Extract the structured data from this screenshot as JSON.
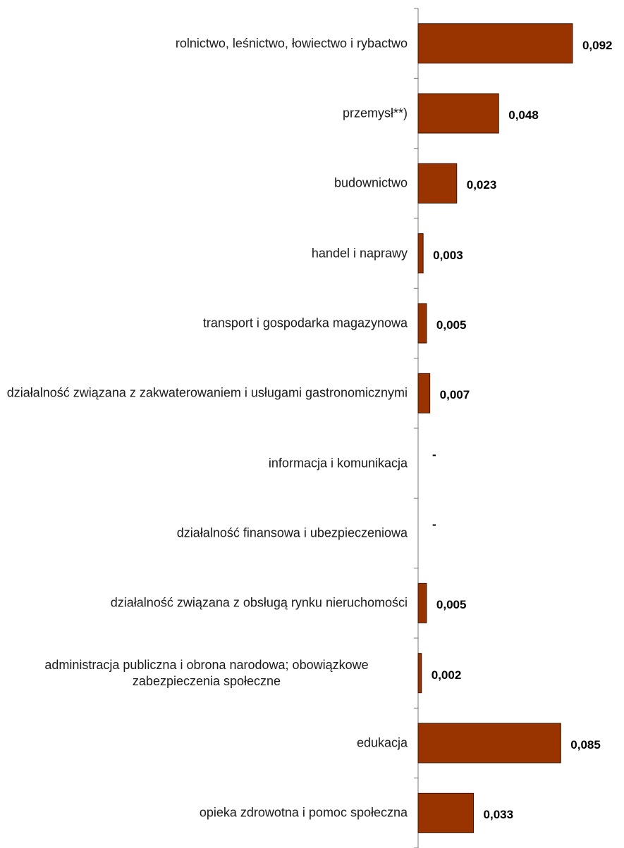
{
  "chart_data": {
    "type": "bar",
    "orientation": "horizontal",
    "color": "#993300",
    "categories": [
      "rolnictwo, leśnictwo, łowiectwo i rybactwo",
      "przemysł**)",
      "budownictwo",
      "handel i naprawy",
      "transport i gospodarka magazynowa",
      "działalność związana z zakwaterowaniem i usługami gastronomicznymi",
      "informacja i komunikacja",
      "działalność finansowa i ubezpieczeniowa",
      "działalność związana z obsługą rynku nieruchomości",
      "administracja publiczna i obrona narodowa; obowiązkowe zabezpieczenia społeczne",
      "edukacja",
      "opieka zdrowotna i pomoc społeczna"
    ],
    "values": [
      0.092,
      0.048,
      0.023,
      0.003,
      0.005,
      0.007,
      null,
      null,
      0.005,
      0.002,
      0.085,
      0.033
    ],
    "value_labels": [
      "0,092",
      "0,048",
      "0,023",
      "0,003",
      "0,005",
      "0,007",
      "-",
      "-",
      "0,005",
      "0,002",
      "0,085",
      "0,033"
    ]
  }
}
